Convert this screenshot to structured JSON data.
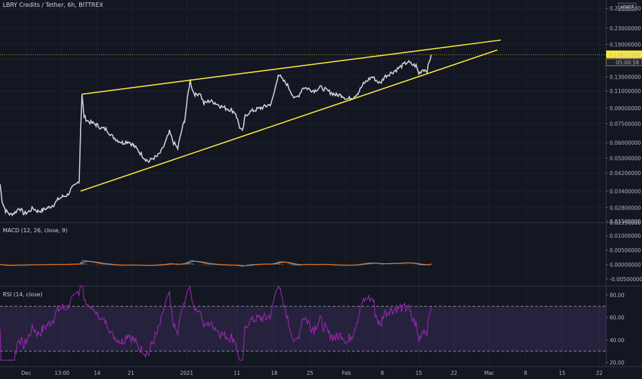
{
  "header": {
    "title": "LBRY Credits / Tether, 6h, BITTREX",
    "currency_badge": "USDT"
  },
  "price_axis": {
    "ticks": [
      "0.29000000",
      "0.23000000",
      "0.19000000",
      "0.16000000",
      "0.13000000",
      "0.11000000",
      "0.09000000",
      "0.07500000",
      "0.06000000",
      "0.05000000",
      "0.04200000",
      "0.03400000",
      "0.02800000",
      "0.02350000"
    ],
    "current_price": "0.16851000",
    "countdown": "05:00:58"
  },
  "macd": {
    "title": "MACD (12, 26, close, 9)",
    "ticks": [
      "0.01500000",
      "0.01000000",
      "0.00500000",
      "0.00000000",
      "-0.00500000"
    ]
  },
  "rsi": {
    "title": "RSI (14, close)",
    "ticks": [
      "80.00",
      "60.00",
      "40.00",
      "20.00"
    ]
  },
  "time_axis": {
    "labels": [
      "Dec",
      "13:00",
      "14",
      "21",
      "2021",
      "11",
      "18",
      "25",
      "Feb",
      "8",
      "15",
      "22",
      "Mar",
      "8",
      "15",
      "22"
    ]
  },
  "colors": {
    "background": "#131722",
    "price_line": "#d1d4dc",
    "trendline": "#ffeb3b",
    "macd_line": "#2196f3",
    "signal_line": "#ff6d00",
    "hist_positive": "#b2b5be",
    "hist_negative": "#ef5350",
    "rsi_line": "#9c27b0",
    "rsi_band": "#7e57c2"
  },
  "chart_data": {
    "type": "line",
    "price_series": [
      {
        "t": 0,
        "v": 0.037
      },
      {
        "t": 3,
        "v": 0.0305
      },
      {
        "t": 8,
        "v": 0.027
      },
      {
        "t": 15,
        "v": 0.0258
      },
      {
        "t": 22,
        "v": 0.0265
      },
      {
        "t": 28,
        "v": 0.028
      },
      {
        "t": 35,
        "v": 0.026
      },
      {
        "t": 42,
        "v": 0.0268
      },
      {
        "t": 48,
        "v": 0.0278
      },
      {
        "t": 55,
        "v": 0.0268
      },
      {
        "t": 62,
        "v": 0.0272
      },
      {
        "t": 70,
        "v": 0.028
      },
      {
        "t": 78,
        "v": 0.029
      },
      {
        "t": 85,
        "v": 0.031
      },
      {
        "t": 92,
        "v": 0.032
      },
      {
        "t": 98,
        "v": 0.0325
      },
      {
        "t": 104,
        "v": 0.035
      },
      {
        "t": 110,
        "v": 0.0365
      },
      {
        "t": 115,
        "v": 0.0385
      },
      {
        "t": 117,
        "v": 0.07
      },
      {
        "t": 119,
        "v": 0.105
      },
      {
        "t": 122,
        "v": 0.082
      },
      {
        "t": 126,
        "v": 0.078
      },
      {
        "t": 132,
        "v": 0.076
      },
      {
        "t": 140,
        "v": 0.074
      },
      {
        "t": 148,
        "v": 0.071
      },
      {
        "t": 155,
        "v": 0.07
      },
      {
        "t": 162,
        "v": 0.065
      },
      {
        "t": 170,
        "v": 0.062
      },
      {
        "t": 178,
        "v": 0.06
      },
      {
        "t": 186,
        "v": 0.061
      },
      {
        "t": 194,
        "v": 0.058
      },
      {
        "t": 202,
        "v": 0.054
      },
      {
        "t": 210,
        "v": 0.05
      },
      {
        "t": 216,
        "v": 0.048
      },
      {
        "t": 222,
        "v": 0.05
      },
      {
        "t": 228,
        "v": 0.051
      },
      {
        "t": 234,
        "v": 0.054
      },
      {
        "t": 240,
        "v": 0.06
      },
      {
        "t": 246,
        "v": 0.068
      },
      {
        "t": 252,
        "v": 0.06
      },
      {
        "t": 258,
        "v": 0.056
      },
      {
        "t": 264,
        "v": 0.07
      },
      {
        "t": 268,
        "v": 0.078
      },
      {
        "t": 272,
        "v": 0.1
      },
      {
        "t": 276,
        "v": 0.125
      },
      {
        "t": 280,
        "v": 0.11
      },
      {
        "t": 284,
        "v": 0.105
      },
      {
        "t": 290,
        "v": 0.108
      },
      {
        "t": 296,
        "v": 0.095
      },
      {
        "t": 304,
        "v": 0.098
      },
      {
        "t": 312,
        "v": 0.096
      },
      {
        "t": 320,
        "v": 0.092
      },
      {
        "t": 328,
        "v": 0.09
      },
      {
        "t": 336,
        "v": 0.088
      },
      {
        "t": 342,
        "v": 0.085
      },
      {
        "t": 348,
        "v": 0.072
      },
      {
        "t": 352,
        "v": 0.068
      },
      {
        "t": 356,
        "v": 0.082
      },
      {
        "t": 362,
        "v": 0.086
      },
      {
        "t": 370,
        "v": 0.088
      },
      {
        "t": 378,
        "v": 0.09
      },
      {
        "t": 386,
        "v": 0.092
      },
      {
        "t": 394,
        "v": 0.095
      },
      {
        "t": 400,
        "v": 0.115
      },
      {
        "t": 404,
        "v": 0.135
      },
      {
        "t": 410,
        "v": 0.125
      },
      {
        "t": 416,
        "v": 0.12
      },
      {
        "t": 422,
        "v": 0.11
      },
      {
        "t": 428,
        "v": 0.1
      },
      {
        "t": 434,
        "v": 0.105
      },
      {
        "t": 440,
        "v": 0.115
      },
      {
        "t": 448,
        "v": 0.113
      },
      {
        "t": 456,
        "v": 0.11
      },
      {
        "t": 464,
        "v": 0.115
      },
      {
        "t": 472,
        "v": 0.112
      },
      {
        "t": 480,
        "v": 0.108
      },
      {
        "t": 488,
        "v": 0.105
      },
      {
        "t": 496,
        "v": 0.105
      },
      {
        "t": 504,
        "v": 0.1
      },
      {
        "t": 512,
        "v": 0.102
      },
      {
        "t": 520,
        "v": 0.108
      },
      {
        "t": 528,
        "v": 0.12
      },
      {
        "t": 534,
        "v": 0.125
      },
      {
        "t": 540,
        "v": 0.13
      },
      {
        "t": 546,
        "v": 0.125
      },
      {
        "t": 552,
        "v": 0.12
      },
      {
        "t": 558,
        "v": 0.13
      },
      {
        "t": 566,
        "v": 0.135
      },
      {
        "t": 574,
        "v": 0.14
      },
      {
        "t": 580,
        "v": 0.145
      },
      {
        "t": 586,
        "v": 0.15
      },
      {
        "t": 592,
        "v": 0.155
      },
      {
        "t": 598,
        "v": 0.15
      },
      {
        "t": 604,
        "v": 0.148
      },
      {
        "t": 608,
        "v": 0.135
      },
      {
        "t": 614,
        "v": 0.142
      },
      {
        "t": 620,
        "v": 0.14
      },
      {
        "t": 626,
        "v": 0.1685
      }
    ],
    "trendlines": [
      {
        "name": "upper",
        "t1": 119,
        "v1": 0.106,
        "t2": 727,
        "v2": 0.2
      },
      {
        "name": "lower",
        "t1": 117,
        "v1": 0.034,
        "t2": 722,
        "v2": 0.178
      }
    ],
    "ylim": [
      0.0235,
      0.32
    ],
    "yscale": "log",
    "grid": true
  }
}
